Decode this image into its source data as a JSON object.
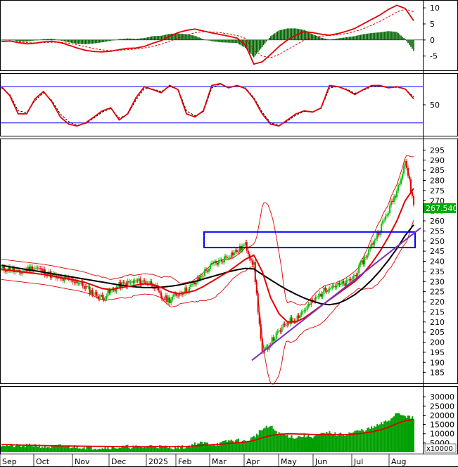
{
  "chart_data": [
    {
      "type": "bar",
      "panel": "macd",
      "ylim": [
        -9,
        12
      ],
      "ticks": [
        "10",
        "5",
        "0",
        "-5"
      ],
      "tick_values": [
        10,
        5,
        0,
        -5
      ],
      "series": [
        {
          "kind": "histogram",
          "color": "#006400"
        },
        {
          "kind": "line",
          "color": "#e00000",
          "values": [
            -0.5,
            -0.3,
            -0.8,
            -1.2,
            -1.0,
            -0.6,
            -0.4,
            -0.8,
            -1.6,
            -2.5,
            -3.2,
            -3.6,
            -3.7,
            -3.5,
            -3.0,
            -2.6,
            -2.5,
            -2.0,
            -1.0,
            -0.2,
            1.2,
            2.3,
            3.0,
            3.4,
            2.8,
            2.2,
            1.7,
            1.2,
            0.6,
            -1.5,
            -7.5,
            -6.8,
            -4.5,
            -2.0,
            0.0,
            1.5,
            2.6,
            2.3,
            1.8,
            1.5,
            2.0,
            2.7,
            3.6,
            5.0,
            6.4,
            7.8,
            9.5,
            10.8,
            9.8,
            6.0
          ]
        },
        {
          "kind": "signal",
          "color": "#e00000",
          "dashed": true,
          "values": [
            -0.4,
            -0.4,
            -0.5,
            -0.8,
            -0.9,
            -0.8,
            -0.7,
            -0.7,
            -1.0,
            -1.5,
            -2.1,
            -2.7,
            -3.1,
            -3.3,
            -3.2,
            -3.0,
            -2.8,
            -2.5,
            -2.0,
            -1.3,
            -0.4,
            0.6,
            1.5,
            2.3,
            2.6,
            2.5,
            2.3,
            1.9,
            1.4,
            0.5,
            -3.0,
            -5.0,
            -5.5,
            -4.5,
            -3.0,
            -1.5,
            0.0,
            0.8,
            1.2,
            1.4,
            1.6,
            2.0,
            2.6,
            3.5,
            4.6,
            5.8,
            7.2,
            8.7,
            9.6,
            8.8
          ]
        }
      ]
    },
    {
      "type": "line",
      "panel": "stochastic",
      "ylim": [
        0,
        100
      ],
      "ticks": [
        "50"
      ],
      "tick_values": [
        50
      ],
      "reference_lines": [
        80,
        20
      ],
      "series": [
        {
          "kind": "line",
          "color": "#e00000",
          "values": [
            80,
            65,
            35,
            35,
            60,
            72,
            55,
            30,
            18,
            15,
            20,
            30,
            40,
            45,
            25,
            35,
            62,
            80,
            75,
            70,
            82,
            75,
            35,
            30,
            40,
            82,
            85,
            78,
            82,
            77,
            60,
            35,
            18,
            15,
            25,
            35,
            40,
            38,
            45,
            82,
            80,
            75,
            67,
            75,
            82,
            82,
            78,
            80,
            76,
            60
          ]
        },
        {
          "kind": "signal",
          "color": "#000",
          "dashed": true,
          "values": [
            78,
            67,
            40,
            37,
            57,
            70,
            57,
            35,
            22,
            16,
            19,
            28,
            38,
            44,
            28,
            34,
            58,
            77,
            76,
            72,
            80,
            76,
            40,
            32,
            38,
            78,
            84,
            79,
            81,
            78,
            62,
            38,
            20,
            16,
            23,
            33,
            39,
            38,
            44,
            78,
            80,
            76,
            69,
            74,
            80,
            81,
            78,
            79,
            76,
            63
          ]
        }
      ]
    },
    {
      "type": "line",
      "panel": "price",
      "ylim": [
        180,
        300
      ],
      "ticks": [
        "295",
        "290",
        "285",
        "280",
        "275",
        "270",
        "265",
        "260",
        "255",
        "250",
        "245",
        "240",
        "235",
        "230",
        "225",
        "220",
        "215",
        "210",
        "205",
        "200",
        "195",
        "190",
        "185"
      ],
      "tick_values": [
        295,
        290,
        285,
        280,
        275,
        270,
        265,
        260,
        255,
        250,
        245,
        240,
        235,
        230,
        225,
        220,
        215,
        210,
        205,
        200,
        195,
        190,
        185
      ],
      "last_price": "267.540",
      "last_price_value": 267.54,
      "colors": {
        "up": "#00c000",
        "down": "#e00000",
        "ma_short": "#e00000",
        "ma_long": "#000000",
        "bollinger": "#e00000",
        "trendline": "#7b2fbe",
        "zone": "#0000ff",
        "ref_line": "#0000ff"
      },
      "close": [
        236,
        236.5,
        234,
        236,
        237,
        235,
        233,
        231,
        231,
        230,
        227,
        224,
        222,
        225,
        228,
        229,
        230,
        230,
        229,
        222,
        221,
        224,
        226,
        229,
        234,
        238,
        240,
        243,
        245,
        248,
        238,
        194,
        200,
        205,
        210,
        212,
        216,
        220,
        224,
        228,
        228,
        229,
        233,
        240,
        248,
        256,
        265,
        275,
        290,
        268
      ],
      "ma_short": [
        236,
        235.5,
        235,
        234.5,
        234,
        233.5,
        232.8,
        232,
        231.2,
        230.5,
        229.5,
        228,
        226.5,
        226,
        226.8,
        227.5,
        228.2,
        228.8,
        228.5,
        227,
        225,
        224,
        224.5,
        225.5,
        227.5,
        230,
        232.5,
        235,
        238,
        241,
        243,
        235,
        222,
        214,
        210,
        210,
        212,
        215,
        218,
        221,
        224,
        227,
        230,
        234,
        239,
        245,
        252,
        260,
        270,
        276
      ],
      "ma_long": [
        238,
        237.3,
        236.6,
        235.9,
        235.3,
        234.6,
        233.9,
        233.2,
        232.5,
        231.8,
        231.1,
        230.4,
        229.7,
        229,
        228.3,
        227.7,
        227.3,
        227,
        227,
        227.2,
        227.6,
        228.2,
        229,
        230,
        231.2,
        232.4,
        233.6,
        234.8,
        235.8,
        236.5,
        236.2,
        233.5,
        230.8,
        228.2,
        225.8,
        223.7,
        221.8,
        220.3,
        219,
        218.5,
        219.2,
        221,
        223.5,
        226.8,
        230.7,
        235.3,
        240.5,
        246.3,
        252.8,
        258
      ]
    },
    {
      "type": "bar",
      "panel": "volume",
      "ylim": [
        0,
        35000
      ],
      "ticks": [
        "30000",
        "25000",
        "20000",
        "15000",
        "10000",
        "5000"
      ],
      "tick_values": [
        30000,
        25000,
        20000,
        15000,
        10000,
        5000
      ],
      "unit": "x10000",
      "volume": [
        4200,
        3600,
        3300,
        3500,
        3900,
        3000,
        2800,
        3400,
        2900,
        3000,
        2600,
        2400,
        2500,
        2700,
        2600,
        3000,
        2800,
        2900,
        3500,
        3000,
        2700,
        2600,
        2900,
        4500,
        5000,
        4400,
        4600,
        6200,
        6500,
        5700,
        8200,
        12500,
        14000,
        10000,
        9000,
        8000,
        9000,
        8500,
        9500,
        10500,
        9500,
        9800,
        11000,
        12000,
        13000,
        15000,
        17000,
        21500,
        20000,
        18000
      ],
      "vol_ma": [
        4200,
        4100,
        3900,
        3800,
        3700,
        3600,
        3500,
        3400,
        3350,
        3300,
        3250,
        3200,
        3150,
        3100,
        3050,
        3000,
        3000,
        3000,
        3100,
        3100,
        3000,
        3000,
        3100,
        3400,
        3800,
        4100,
        4300,
        4700,
        5200,
        5500,
        6300,
        7800,
        9000,
        9700,
        10000,
        9900,
        9800,
        9600,
        9500,
        9600,
        9500,
        9500,
        9800,
        10300,
        11000,
        12000,
        13500,
        15500,
        17000,
        17800
      ]
    }
  ],
  "x_axis": {
    "labels": [
      "Sep",
      "Oct",
      "Nov",
      "Dec",
      "2025",
      "Feb",
      "Mar",
      "Apr",
      "May",
      "Jun",
      "Jul",
      "Aug"
    ]
  }
}
